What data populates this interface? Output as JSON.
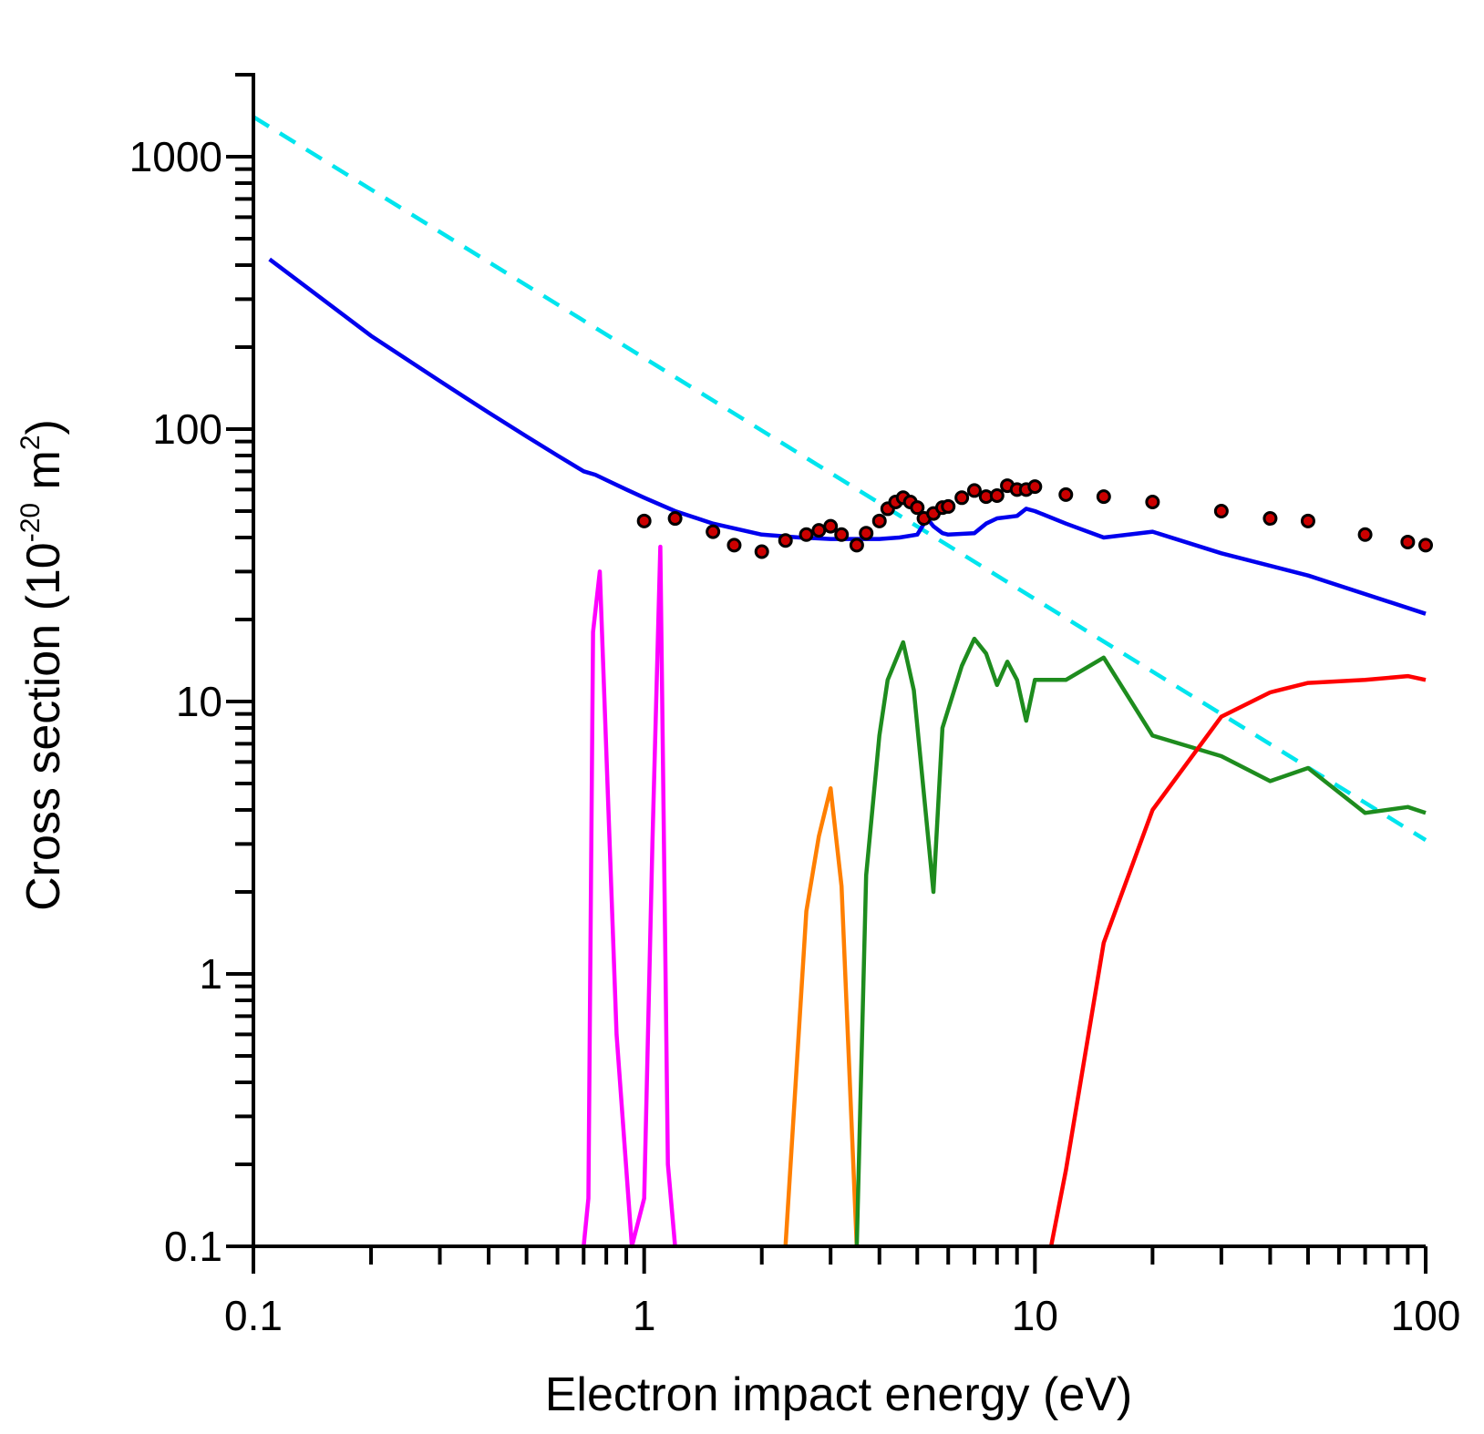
{
  "chart_data": {
    "type": "line",
    "xlabel": "Electron impact energy (eV)",
    "ylabel": {
      "prefix": "Cross section (10",
      "exp1": "-20",
      "middle": " m",
      "exp2": "2",
      "suffix": ")"
    },
    "x_scale": "log",
    "y_scale": "log",
    "xlim": [
      0.1,
      100
    ],
    "ylim": [
      0.1,
      2000
    ],
    "x_ticks": [
      {
        "value": 0.1,
        "label": "0.1"
      },
      {
        "value": 1,
        "label": "1"
      },
      {
        "value": 10,
        "label": "10"
      },
      {
        "value": 100,
        "label": "100"
      }
    ],
    "y_ticks": [
      {
        "value": 0.1,
        "label": "0.1"
      },
      {
        "value": 1,
        "label": "1"
      },
      {
        "value": 10,
        "label": "10"
      },
      {
        "value": 100,
        "label": "100"
      },
      {
        "value": 1000,
        "label": "1000"
      }
    ],
    "grid": false,
    "legend": "none",
    "series": [
      {
        "color": "#00e5ee",
        "style": "dashed",
        "x": [
          0.1,
          100
        ],
        "y": [
          1400,
          3.1
        ]
      },
      {
        "color": "#0000ee",
        "style": "solid",
        "x": [
          0.11,
          0.2,
          0.3,
          0.4,
          0.5,
          0.6,
          0.7,
          0.75,
          0.8,
          0.9,
          1.0,
          1.2,
          1.5,
          2.0,
          2.5,
          3.0,
          3.5,
          4.0,
          4.5,
          5.0,
          5.3,
          5.5,
          5.8,
          6.0,
          7.0,
          7.5,
          8.0,
          9.0,
          9.5,
          10.0,
          12.0,
          15.0,
          20.0,
          30.0,
          50.0,
          100.0
        ],
        "y": [
          420,
          220,
          150,
          115,
          94,
          80,
          70,
          68,
          65,
          60,
          56,
          50,
          45,
          41,
          40,
          39.5,
          39.5,
          39.5,
          40,
          41,
          47,
          44,
          41.5,
          41,
          41.5,
          45,
          47,
          48,
          51,
          50,
          45,
          40,
          42,
          35,
          29,
          21
        ]
      },
      {
        "color": "#ff00ff",
        "style": "solid",
        "x": [
          0.7,
          0.72,
          0.74,
          0.77,
          0.85,
          0.93,
          1.0,
          1.05,
          1.1,
          1.15,
          1.2
        ],
        "y": [
          0.1,
          0.15,
          18,
          30,
          0.6,
          0.1,
          0.15,
          3,
          37,
          0.2,
          0.1
        ]
      },
      {
        "color": "#ff7f00",
        "style": "solid",
        "x": [
          2.3,
          2.6,
          2.8,
          3.0,
          3.2,
          3.5
        ],
        "y": [
          0.1,
          1.7,
          3.2,
          4.8,
          2.1,
          0.1
        ]
      },
      {
        "color": "#1e8c1e",
        "style": "solid",
        "x": [
          3.5,
          3.7,
          4.0,
          4.2,
          4.6,
          4.9,
          5.5,
          5.8,
          6.5,
          7.0,
          7.5,
          8.0,
          8.5,
          9.0,
          9.5,
          10.0,
          12.0,
          15.0,
          20.0,
          30.0,
          40.0,
          50.0,
          70.0,
          90.0,
          100.0
        ],
        "y": [
          0.1,
          2.3,
          7.5,
          12,
          16.5,
          11,
          2,
          8,
          13.5,
          17,
          15,
          11.5,
          14,
          12,
          8.5,
          12,
          12,
          14.5,
          7.5,
          6.3,
          5.1,
          5.7,
          3.9,
          4.1,
          3.9
        ]
      },
      {
        "color": "#ff0000",
        "style": "solid",
        "x": [
          11.0,
          12.0,
          15.0,
          20.0,
          30.0,
          40.0,
          50.0,
          70.0,
          90.0,
          100.0
        ],
        "y": [
          0.1,
          0.19,
          1.3,
          4,
          8.8,
          10.8,
          11.7,
          12,
          12.4,
          12
        ]
      },
      {
        "color": "#cc0000",
        "style": "markers",
        "x": [
          1.0,
          1.2,
          1.5,
          1.7,
          2.0,
          2.3,
          2.6,
          2.8,
          3.0,
          3.2,
          3.5,
          3.7,
          4.0,
          4.2,
          4.4,
          4.6,
          4.8,
          5.0,
          5.2,
          5.5,
          5.8,
          6.0,
          6.5,
          7.0,
          7.5,
          8.0,
          8.5,
          9.0,
          9.5,
          10.0,
          12.0,
          15.0,
          20.0,
          30.0,
          40.0,
          50.0,
          70.0,
          90.0,
          100.0
        ],
        "y": [
          46,
          47,
          42,
          37.5,
          35.5,
          39,
          41,
          42.5,
          44,
          41,
          37.5,
          41.5,
          46,
          51,
          54,
          56,
          54,
          51.5,
          47,
          49,
          51.5,
          52,
          56,
          59.5,
          56.5,
          57,
          62,
          60,
          60,
          61.5,
          57.5,
          56.5,
          54,
          50,
          47,
          46,
          41,
          38.5,
          37.5
        ]
      }
    ]
  }
}
